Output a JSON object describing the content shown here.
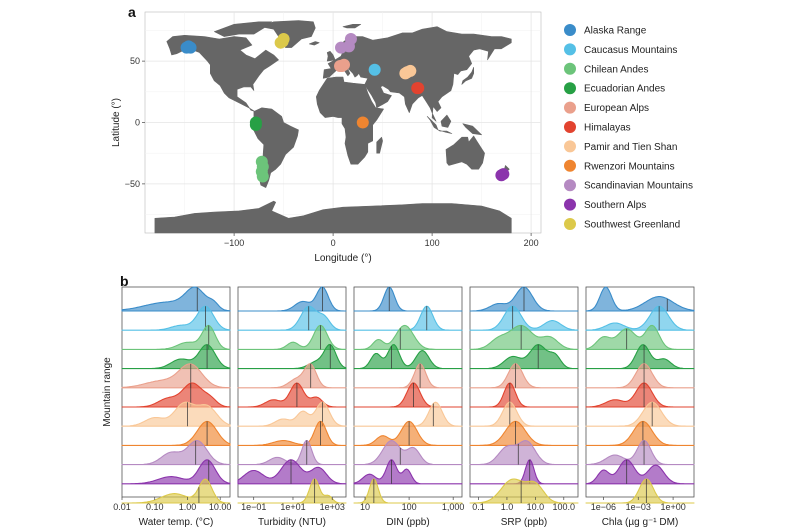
{
  "colors": {
    "Alaska Range": "#3a8cc9",
    "Caucasus Mountains": "#55c0e6",
    "Chilean Andes": "#6cc47a",
    "Ecuadorian Andes": "#27a045",
    "European Alps": "#eaa08c",
    "Himalayas": "#e2432f",
    "Pamir and Tien Shan": "#f9c797",
    "Rwenzori Mountains": "#ef8530",
    "Scandinavian Mountains": "#b58ac2",
    "Southern Alps": "#8b34ac",
    "Southwest Greenland": "#dcc94a"
  },
  "chart_data": [
    {
      "type": "scatter",
      "panel_letter": "a",
      "xlabel": "Longitude (°)",
      "ylabel": "Latitude (°)",
      "xlim": [
        -190,
        210
      ],
      "ylim": [
        -90,
        90
      ],
      "x_ticks": [
        -100,
        0,
        100,
        200
      ],
      "y_ticks": [
        -50,
        0,
        50
      ],
      "x_tick_labels": [
        "−100",
        "0",
        "100",
        "200"
      ],
      "y_tick_labels": [
        "−50",
        "0",
        "50"
      ],
      "grid": true,
      "legend": "right",
      "legend_entries": [
        "Alaska Range",
        "Caucasus Mountains",
        "Chilean Andes",
        "Ecuadorian Andes",
        "European Alps",
        "Himalayas",
        "Pamir and Tien Shan",
        "Rwenzori Mountains",
        "Scandinavian Mountains",
        "Southern Alps",
        "Southwest Greenland"
      ],
      "series": [
        {
          "name": "Alaska Range",
          "points": [
            [
              -148,
              61
            ],
            [
              -146,
              62
            ],
            [
              -144,
              61
            ]
          ]
        },
        {
          "name": "Caucasus Mountains",
          "points": [
            [
              42,
              43
            ]
          ]
        },
        {
          "name": "Chilean Andes",
          "points": [
            [
              -72,
              -32
            ],
            [
              -71,
              -36
            ],
            [
              -72,
              -40
            ],
            [
              -71,
              -44
            ]
          ]
        },
        {
          "name": "Ecuadorian Andes",
          "points": [
            [
              -78,
              0
            ],
            [
              -78,
              -2
            ]
          ]
        },
        {
          "name": "European Alps",
          "points": [
            [
              7,
              46
            ],
            [
              9,
              46
            ],
            [
              11,
              47
            ]
          ]
        },
        {
          "name": "Himalayas",
          "points": [
            [
              85,
              28
            ],
            [
              86,
              28
            ]
          ]
        },
        {
          "name": "Pamir and Tien Shan",
          "points": [
            [
              73,
              40
            ],
            [
              78,
              42
            ],
            [
              75,
              41
            ]
          ]
        },
        {
          "name": "Rwenzori Mountains",
          "points": [
            [
              30,
              0
            ]
          ]
        },
        {
          "name": "Scandinavian Mountains",
          "points": [
            [
              8,
              61
            ],
            [
              16,
              62
            ],
            [
              18,
              68
            ]
          ]
        },
        {
          "name": "Southern Alps",
          "points": [
            [
              170,
              -43
            ],
            [
              172,
              -42
            ]
          ]
        },
        {
          "name": "Southwest Greenland",
          "points": [
            [
              -51,
              66
            ],
            [
              -50,
              68
            ],
            [
              -53,
              65
            ]
          ]
        }
      ]
    },
    {
      "type": "ridgeline",
      "panel_letter": "b",
      "ylabel": "Mountain range",
      "rows": [
        "Alaska Range",
        "Caucasus Mountains",
        "Chilean Andes",
        "Ecuadorian Andes",
        "European Alps",
        "Himalayas",
        "Pamir and Tien Shan",
        "Rwenzori Mountains",
        "Scandinavian Mountains",
        "Southern Alps",
        "Southwest Greenland"
      ],
      "panels": [
        {
          "xlabel": "Water temp. (°C)",
          "log10_range": [
            -2,
            1.3
          ],
          "ticks": [
            0.01,
            0.1,
            1,
            10
          ],
          "tick_labels": [
            "0.01",
            "0.10",
            "1.00",
            "10.00"
          ],
          "medians": [
            0.3,
            0.55,
            0.65,
            0.6,
            0.1,
            0.1,
            0.0,
            0.6,
            0.25,
            0.65,
            0.35
          ],
          "curves": [
            [
              [
                -0.6,
                0.7,
                0.45
              ],
              [
                0.25,
                0.3,
                1.0
              ],
              [
                0.8,
                0.15,
                0.3
              ]
            ],
            [
              [
                -0.2,
                0.3,
                0.2
              ],
              [
                0.55,
                0.25,
                1.0
              ]
            ],
            [
              [
                0.0,
                0.3,
                0.3
              ],
              [
                0.65,
                0.2,
                1.0
              ]
            ],
            [
              [
                -0.2,
                0.3,
                0.4
              ],
              [
                0.6,
                0.25,
                1.0
              ]
            ],
            [
              [
                -0.8,
                0.5,
                0.3
              ],
              [
                0.1,
                0.35,
                1.0
              ]
            ],
            [
              [
                -0.6,
                0.3,
                0.35
              ],
              [
                0.15,
                0.3,
                1.0
              ],
              [
                0.7,
                0.2,
                0.3
              ]
            ],
            [
              [
                -1.0,
                0.3,
                0.3
              ],
              [
                -0.1,
                0.3,
                0.8
              ],
              [
                0.6,
                0.3,
                0.7
              ]
            ],
            [
              [
                0.6,
                0.3,
                1.0
              ]
            ],
            [
              [
                -0.5,
                0.3,
                0.5
              ],
              [
                0.3,
                0.3,
                1.0
              ]
            ],
            [
              [
                -0.5,
                0.4,
                0.3
              ],
              [
                0.6,
                0.25,
                1.0
              ]
            ],
            [
              [
                -0.4,
                0.4,
                0.4
              ],
              [
                0.55,
                0.2,
                1.0
              ]
            ]
          ]
        },
        {
          "xlabel": "Turbidity (NTU)",
          "log10_range": [
            -1.8,
            3.7
          ],
          "ticks": [
            0.1,
            10,
            1000
          ],
          "tick_labels": [
            "1e−01",
            "1e+01",
            "1e+03"
          ],
          "medians": [
            2.5,
            1.8,
            2.4,
            2.9,
            1.9,
            1.2,
            2.5,
            2.4,
            1.7,
            0.9,
            2.1
          ],
          "curves": [
            [
              [
                1.5,
                0.4,
                0.4
              ],
              [
                2.5,
                0.3,
                1.0
              ]
            ],
            [
              [
                1.8,
                0.4,
                1.0
              ],
              [
                2.6,
                0.3,
                0.5
              ]
            ],
            [
              [
                1.0,
                0.3,
                0.3
              ],
              [
                2.4,
                0.35,
                1.0
              ]
            ],
            [
              [
                2.9,
                0.3,
                1.0
              ],
              [
                2.2,
                0.4,
                0.3
              ]
            ],
            [
              [
                1.2,
                0.4,
                0.4
              ],
              [
                1.9,
                0.3,
                1.0
              ]
            ],
            [
              [
                0.0,
                0.4,
                0.3
              ],
              [
                1.2,
                0.35,
                1.0
              ],
              [
                2.2,
                0.3,
                0.4
              ]
            ],
            [
              [
                0.5,
                0.4,
                0.3
              ],
              [
                1.5,
                0.3,
                0.6
              ],
              [
                2.5,
                0.35,
                1.0
              ]
            ],
            [
              [
                0.5,
                0.5,
                0.2
              ],
              [
                2.4,
                0.3,
                1.0
              ]
            ],
            [
              [
                0.2,
                0.4,
                0.3
              ],
              [
                1.7,
                0.25,
                1.0
              ]
            ],
            [
              [
                -1.0,
                0.5,
                0.5
              ],
              [
                0.9,
                0.5,
                0.9
              ],
              [
                2.3,
                0.4,
                0.6
              ]
            ],
            [
              [
                2.1,
                0.25,
                1.0
              ],
              [
                2.8,
                0.2,
                0.3
              ]
            ]
          ]
        },
        {
          "xlabel": "DIN (ppb)",
          "log10_range": [
            0.75,
            3.2
          ],
          "ticks": [
            10,
            100,
            1000
          ],
          "tick_labels": [
            "10",
            "100",
            "1,000"
          ],
          "medians": [
            1.55,
            2.4,
            1.8,
            1.6,
            2.25,
            2.1,
            2.55,
            2.0,
            1.8,
            1.6,
            1.2
          ],
          "curves": [
            [
              [
                1.55,
                0.12,
                1.0
              ]
            ],
            [
              [
                2.4,
                0.14,
                1.0
              ]
            ],
            [
              [
                1.3,
                0.12,
                0.4
              ],
              [
                1.9,
                0.2,
                1.0
              ]
            ],
            [
              [
                1.25,
                0.12,
                0.5
              ],
              [
                1.65,
                0.13,
                0.8
              ],
              [
                2.3,
                0.15,
                0.6
              ]
            ],
            [
              [
                2.25,
                0.13,
                1.0
              ]
            ],
            [
              [
                2.1,
                0.15,
                1.0
              ]
            ],
            [
              [
                2.6,
                0.15,
                1.0
              ]
            ],
            [
              [
                1.4,
                0.15,
                0.4
              ],
              [
                2.0,
                0.18,
                1.0
              ]
            ],
            [
              [
                1.6,
                0.2,
                0.6
              ],
              [
                2.1,
                0.15,
                0.4
              ]
            ],
            [
              [
                1.1,
                0.15,
                0.4
              ],
              [
                1.6,
                0.12,
                1.0
              ],
              [
                1.95,
                0.1,
                0.6
              ]
            ],
            [
              [
                1.2,
                0.1,
                1.0
              ]
            ]
          ]
        },
        {
          "xlabel": "SRP (ppb)",
          "log10_range": [
            -1.3,
            2.5
          ],
          "ticks": [
            0.1,
            1,
            10,
            100
          ],
          "tick_labels": [
            "0.1",
            "1.0",
            "10.0",
            "100.0"
          ],
          "medians": [
            0.6,
            0.2,
            0.5,
            1.1,
            0.3,
            0.1,
            0.1,
            0.3,
            0.4,
            0.8,
            0.5
          ],
          "curves": [
            [
              [
                -0.3,
                0.3,
                0.3
              ],
              [
                0.6,
                0.3,
                1.0
              ]
            ],
            [
              [
                0.2,
                0.3,
                1.0
              ],
              [
                1.6,
                0.3,
                0.4
              ]
            ],
            [
              [
                -0.3,
                0.3,
                0.4
              ],
              [
                0.5,
                0.4,
                1.0
              ],
              [
                1.5,
                0.3,
                0.5
              ]
            ],
            [
              [
                0.2,
                0.3,
                0.5
              ],
              [
                1.1,
                0.3,
                1.0
              ],
              [
                1.7,
                0.2,
                0.5
              ]
            ],
            [
              [
                0.3,
                0.25,
                1.0
              ]
            ],
            [
              [
                0.1,
                0.2,
                1.0
              ]
            ],
            [
              [
                0.1,
                0.25,
                1.0
              ]
            ],
            [
              [
                0.3,
                0.35,
                1.0
              ]
            ],
            [
              [
                0.0,
                0.3,
                0.6
              ],
              [
                0.7,
                0.3,
                0.8
              ]
            ],
            [
              [
                0.8,
                0.15,
                1.0
              ]
            ],
            [
              [
                0.2,
                0.4,
                0.8
              ],
              [
                1.0,
                0.3,
                0.6
              ]
            ]
          ]
        },
        {
          "xlabel": "Chla (µg g⁻¹ DM)",
          "log10_range": [
            -7.5,
            1.8
          ],
          "ticks": [
            1e-06,
            0.001,
            1
          ],
          "tick_labels": [
            "1e−06",
            "1e−03",
            "1e+00"
          ],
          "medians": [
            -0.5,
            -1.2,
            -4.0,
            -2.5,
            -2.5,
            -2.5,
            -1.8,
            -2.6,
            -2.5,
            -4.0,
            -2.3
          ],
          "curves": [
            [
              [
                -5.8,
                0.5,
                1.0
              ],
              [
                -1.2,
                1.2,
                0.6
              ]
            ],
            [
              [
                -5.0,
                0.8,
                0.3
              ],
              [
                -1.2,
                0.8,
                1.0
              ]
            ],
            [
              [
                -6.0,
                0.6,
                0.4
              ],
              [
                -4.0,
                0.8,
                0.7
              ],
              [
                -1.8,
                0.6,
                0.8
              ]
            ],
            [
              [
                -2.6,
                0.6,
                1.0
              ],
              [
                -0.8,
                0.6,
                0.4
              ]
            ],
            [
              [
                -2.5,
                0.7,
                1.0
              ]
            ],
            [
              [
                -5.0,
                0.8,
                0.3
              ],
              [
                -2.5,
                0.7,
                1.0
              ]
            ],
            [
              [
                -1.8,
                0.8,
                1.0
              ]
            ],
            [
              [
                -2.6,
                0.8,
                1.0
              ]
            ],
            [
              [
                -5.0,
                0.8,
                0.4
              ],
              [
                -2.5,
                0.6,
                1.0
              ]
            ],
            [
              [
                -6.0,
                0.5,
                0.5
              ],
              [
                -4.0,
                0.7,
                0.9
              ],
              [
                -1.5,
                0.7,
                0.7
              ]
            ],
            [
              [
                -2.3,
                0.6,
                1.0
              ]
            ]
          ]
        }
      ]
    }
  ]
}
